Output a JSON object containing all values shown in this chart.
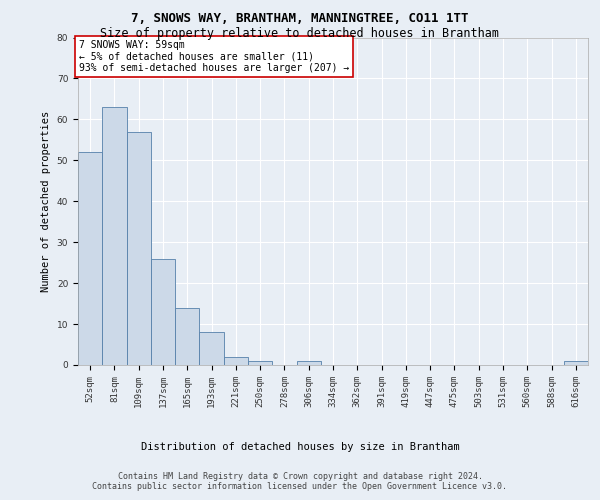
{
  "title": "7, SNOWS WAY, BRANTHAM, MANNINGTREE, CO11 1TT",
  "subtitle": "Size of property relative to detached houses in Brantham",
  "xlabel_bottom": "Distribution of detached houses by size in Brantham",
  "ylabel": "Number of detached properties",
  "bar_color": "#ccd9e8",
  "bar_edge_color": "#5580aa",
  "categories": [
    "52sqm",
    "81sqm",
    "109sqm",
    "137sqm",
    "165sqm",
    "193sqm",
    "221sqm",
    "250sqm",
    "278sqm",
    "306sqm",
    "334sqm",
    "362sqm",
    "391sqm",
    "419sqm",
    "447sqm",
    "475sqm",
    "503sqm",
    "531sqm",
    "560sqm",
    "588sqm",
    "616sqm"
  ],
  "values": [
    52,
    63,
    57,
    26,
    14,
    8,
    2,
    1,
    0,
    1,
    0,
    0,
    0,
    0,
    0,
    0,
    0,
    0,
    0,
    0,
    1
  ],
  "ylim": [
    0,
    80
  ],
  "yticks": [
    0,
    10,
    20,
    30,
    40,
    50,
    60,
    70,
    80
  ],
  "annotation_text": "7 SNOWS WAY: 59sqm\n← 5% of detached houses are smaller (11)\n93% of semi-detached houses are larger (207) →",
  "annotation_box_color": "#ffffff",
  "annotation_border_color": "#cc0000",
  "footer_line1": "Contains HM Land Registry data © Crown copyright and database right 2024.",
  "footer_line2": "Contains public sector information licensed under the Open Government Licence v3.0.",
  "bg_color": "#e8eef5",
  "plot_bg_color": "#e8eef5",
  "grid_color": "#ffffff",
  "title_fontsize": 9,
  "subtitle_fontsize": 8.5,
  "axis_label_fontsize": 7.5,
  "tick_fontsize": 6.5,
  "annotation_fontsize": 7,
  "footer_fontsize": 6
}
